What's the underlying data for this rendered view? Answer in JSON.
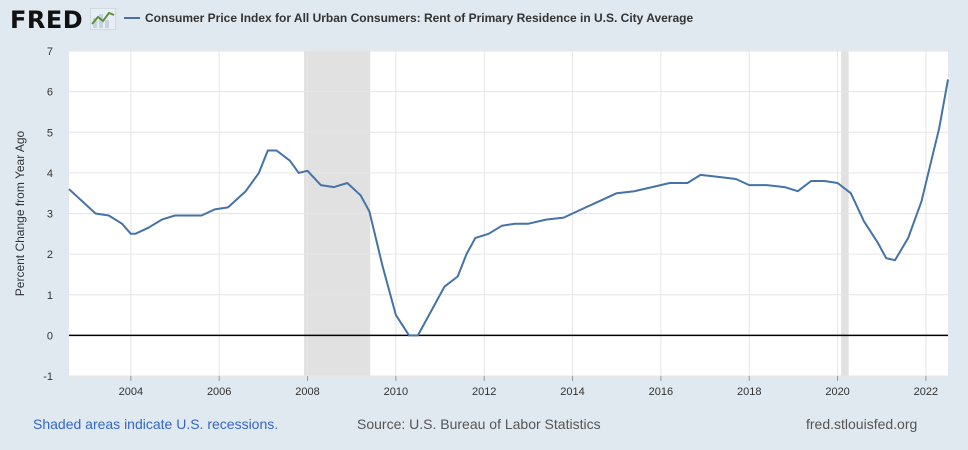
{
  "header": {
    "logo_text": "FRED",
    "series_title": "Consumer Price Index for All Urban Consumers: Rent of Primary Residence in U.S. City Average"
  },
  "footer": {
    "recession_note": "Shaded areas indicate U.S. recessions.",
    "source": "Source: U.S. Bureau of Labor Statistics",
    "site": "fred.stlouisfed.org"
  },
  "colors": {
    "series": "#4572a7",
    "recession": "#e1e1e1",
    "background": "#e1e9f0",
    "plot": "#ffffff"
  },
  "chart_data": {
    "type": "line",
    "title": "",
    "ylabel": "Percent Change from Year Ago",
    "xlabel": "",
    "xlim": [
      2002.6,
      2022.5
    ],
    "ylim": [
      -1,
      7
    ],
    "yticks": [
      -1,
      0,
      1,
      2,
      3,
      4,
      5,
      6,
      7
    ],
    "xticks": [
      2004,
      2006,
      2008,
      2010,
      2012,
      2014,
      2016,
      2018,
      2020,
      2022
    ],
    "recessions": [
      [
        2007.92,
        2009.42
      ],
      [
        2020.08,
        2020.25
      ]
    ],
    "baseline": 0,
    "series": [
      {
        "name": "Consumer Price Index for All Urban Consumers: Rent of Primary Residence in U.S. City Average",
        "x": [
          2002.6,
          2002.8,
          2003.0,
          2003.2,
          2003.5,
          2003.8,
          2004.0,
          2004.1,
          2004.4,
          2004.7,
          2005.0,
          2005.3,
          2005.6,
          2005.9,
          2006.2,
          2006.6,
          2006.9,
          2007.1,
          2007.3,
          2007.6,
          2007.8,
          2008.0,
          2008.3,
          2008.6,
          2008.9,
          2009.2,
          2009.4,
          2009.7,
          2010.0,
          2010.3,
          2010.5,
          2010.8,
          2011.1,
          2011.4,
          2011.6,
          2011.8,
          2012.1,
          2012.4,
          2012.7,
          2013.0,
          2013.4,
          2013.8,
          2014.2,
          2014.6,
          2015.0,
          2015.4,
          2015.8,
          2016.2,
          2016.6,
          2016.9,
          2017.3,
          2017.7,
          2018.0,
          2018.4,
          2018.8,
          2019.1,
          2019.4,
          2019.7,
          2020.0,
          2020.3,
          2020.6,
          2020.9,
          2021.1,
          2021.3,
          2021.6,
          2021.9,
          2022.1,
          2022.3,
          2022.5
        ],
        "y": [
          3.6,
          3.4,
          3.2,
          3.0,
          2.95,
          2.75,
          2.5,
          2.5,
          2.65,
          2.85,
          2.95,
          2.95,
          2.95,
          3.1,
          3.15,
          3.55,
          4.0,
          4.55,
          4.55,
          4.3,
          4.0,
          4.05,
          3.7,
          3.65,
          3.75,
          3.45,
          3.05,
          1.7,
          0.5,
          0.0,
          0.0,
          0.6,
          1.2,
          1.45,
          2.0,
          2.4,
          2.5,
          2.7,
          2.75,
          2.75,
          2.85,
          2.9,
          3.1,
          3.3,
          3.5,
          3.55,
          3.65,
          3.75,
          3.75,
          3.95,
          3.9,
          3.85,
          3.7,
          3.7,
          3.65,
          3.55,
          3.8,
          3.8,
          3.75,
          3.5,
          2.8,
          2.3,
          1.9,
          1.85,
          2.4,
          3.3,
          4.2,
          5.1,
          6.3
        ]
      }
    ]
  }
}
